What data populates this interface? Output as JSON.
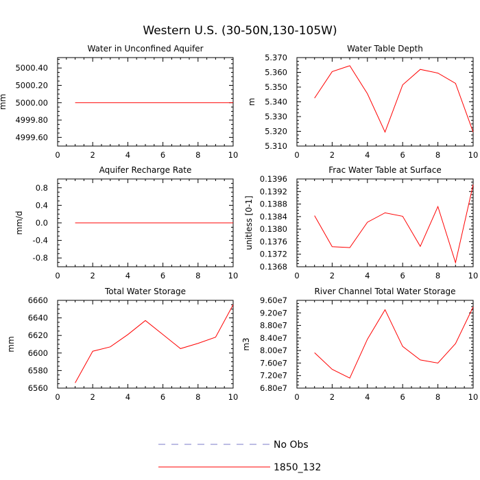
{
  "page_title": "Western U.S. (30-50N,130-105W)",
  "legend": [
    {
      "label": "No Obs",
      "color": "#7878c8",
      "dash": true
    },
    {
      "label": "1850_132",
      "color": "#ff0000",
      "dash": false
    }
  ],
  "chart_data": [
    {
      "type": "line",
      "title": "Water in Unconfined Aquifer",
      "ylabel": "mm",
      "xlim": [
        0,
        10
      ],
      "ylim": [
        4999.5,
        5000.52
      ],
      "xticks": [
        0,
        2,
        4,
        6,
        8,
        10
      ],
      "xtick_labels": [
        "0",
        "2",
        "4",
        "6",
        "8",
        "10"
      ],
      "yticks": [
        4999.6,
        4999.8,
        5000.0,
        5000.2,
        5000.4
      ],
      "ytick_labels": [
        "4999.60",
        "4999.80",
        "5000.00",
        "5000.20",
        "5000.40"
      ],
      "series": [
        {
          "name": "1850_132",
          "color": "#ff0000",
          "x": [
            1,
            2,
            3,
            4,
            5,
            6,
            7,
            8,
            9,
            10
          ],
          "y": [
            5000.0,
            5000.0,
            5000.0,
            5000.0,
            5000.0,
            5000.0,
            5000.0,
            5000.0,
            5000.0,
            5000.0
          ]
        }
      ]
    },
    {
      "type": "line",
      "title": "Water Table Depth",
      "ylabel": "m",
      "xlim": [
        0,
        10
      ],
      "ylim": [
        5.31,
        5.37
      ],
      "xticks": [
        0,
        2,
        4,
        6,
        8,
        10
      ],
      "xtick_labels": [
        "0",
        "2",
        "4",
        "6",
        "8",
        "10"
      ],
      "yticks": [
        5.31,
        5.32,
        5.33,
        5.34,
        5.35,
        5.36,
        5.37
      ],
      "ytick_labels": [
        "5.310",
        "5.320",
        "5.330",
        "5.340",
        "5.350",
        "5.360",
        "5.370"
      ],
      "series": [
        {
          "name": "1850_132",
          "color": "#ff0000",
          "x": [
            1,
            2,
            3,
            4,
            5,
            6,
            7,
            8,
            9,
            10
          ],
          "y": [
            5.3425,
            5.3605,
            5.3645,
            5.3455,
            5.3195,
            5.3515,
            5.362,
            5.3595,
            5.3525,
            5.3195
          ]
        }
      ]
    },
    {
      "type": "line",
      "title": "Aquifer Recharge Rate",
      "ylabel": "mm/d",
      "xlim": [
        0,
        10
      ],
      "ylim": [
        -1,
        1
      ],
      "xticks": [
        0,
        2,
        4,
        6,
        8,
        10
      ],
      "xtick_labels": [
        "0",
        "2",
        "4",
        "6",
        "8",
        "10"
      ],
      "yticks": [
        -0.8,
        -0.4,
        0.0,
        0.4,
        0.8
      ],
      "ytick_labels": [
        "-0.8",
        "-0.4",
        "0.0",
        "0.4",
        "0.8"
      ],
      "series": [
        {
          "name": "1850_132",
          "color": "#ff0000",
          "x": [
            1,
            2,
            3,
            4,
            5,
            6,
            7,
            8,
            9,
            10
          ],
          "y": [
            0,
            0,
            0,
            0,
            0,
            0,
            0,
            0,
            0,
            0
          ]
        }
      ]
    },
    {
      "type": "line",
      "title": "Frac Water Table at Surface",
      "ylabel": "unitless [0-1]",
      "xlim": [
        0,
        10
      ],
      "ylim": [
        0.1368,
        0.1396
      ],
      "xticks": [
        0,
        2,
        4,
        6,
        8,
        10
      ],
      "xtick_labels": [
        "0",
        "2",
        "4",
        "6",
        "8",
        "10"
      ],
      "yticks": [
        0.1368,
        0.1372,
        0.1376,
        0.138,
        0.1384,
        0.1388,
        0.1392,
        0.1396
      ],
      "ytick_labels": [
        "0.1368",
        "0.1372",
        "0.1376",
        "0.1380",
        "0.1384",
        "0.1388",
        "0.1392",
        "0.1396"
      ],
      "series": [
        {
          "name": "1850_132",
          "color": "#ff0000",
          "x": [
            1,
            2,
            3,
            4,
            5,
            6,
            7,
            8,
            9,
            10
          ],
          "y": [
            0.13843,
            0.13744,
            0.13741,
            0.13822,
            0.13852,
            0.13841,
            0.13745,
            0.13872,
            0.13693,
            0.13942
          ]
        }
      ]
    },
    {
      "type": "line",
      "title": "Total Water Storage",
      "ylabel": "mm",
      "xlim": [
        0,
        10
      ],
      "ylim": [
        6560,
        6660
      ],
      "xticks": [
        0,
        2,
        4,
        6,
        8,
        10
      ],
      "xtick_labels": [
        "0",
        "2",
        "4",
        "6",
        "8",
        "10"
      ],
      "yticks": [
        6560,
        6580,
        6600,
        6620,
        6640,
        6660
      ],
      "ytick_labels": [
        "6560",
        "6580",
        "6600",
        "6620",
        "6640",
        "6660"
      ],
      "series": [
        {
          "name": "1850_132",
          "color": "#ff0000",
          "x": [
            1,
            2,
            3,
            4,
            5,
            6,
            7,
            8,
            9,
            10
          ],
          "y": [
            6566,
            6602,
            6607,
            6621,
            6637,
            6621,
            6605,
            6611,
            6618,
            6655
          ]
        }
      ]
    },
    {
      "type": "line",
      "title": "River Channel Total Water Storage",
      "ylabel": "m3",
      "xlim": [
        0,
        10
      ],
      "ylim": [
        68000000,
        96000000
      ],
      "xticks": [
        0,
        2,
        4,
        6,
        8,
        10
      ],
      "xtick_labels": [
        "0",
        "2",
        "4",
        "6",
        "8",
        "10"
      ],
      "yticks": [
        68000000,
        72000000,
        76000000,
        80000000,
        84000000,
        88000000,
        92000000,
        96000000
      ],
      "ytick_labels": [
        "6.80e7",
        "7.20e7",
        "7.60e7",
        "8.00e7",
        "8.40e7",
        "8.80e7",
        "9.20e7",
        "9.60e7"
      ],
      "series": [
        {
          "name": "1850_132",
          "color": "#ff0000",
          "x": [
            1,
            2,
            3,
            4,
            5,
            6,
            7,
            8,
            9,
            10
          ],
          "y": [
            79300000,
            74000000,
            71200000,
            83600000,
            93000000,
            81300000,
            77000000,
            76000000,
            82200000,
            93900000
          ]
        }
      ]
    }
  ]
}
